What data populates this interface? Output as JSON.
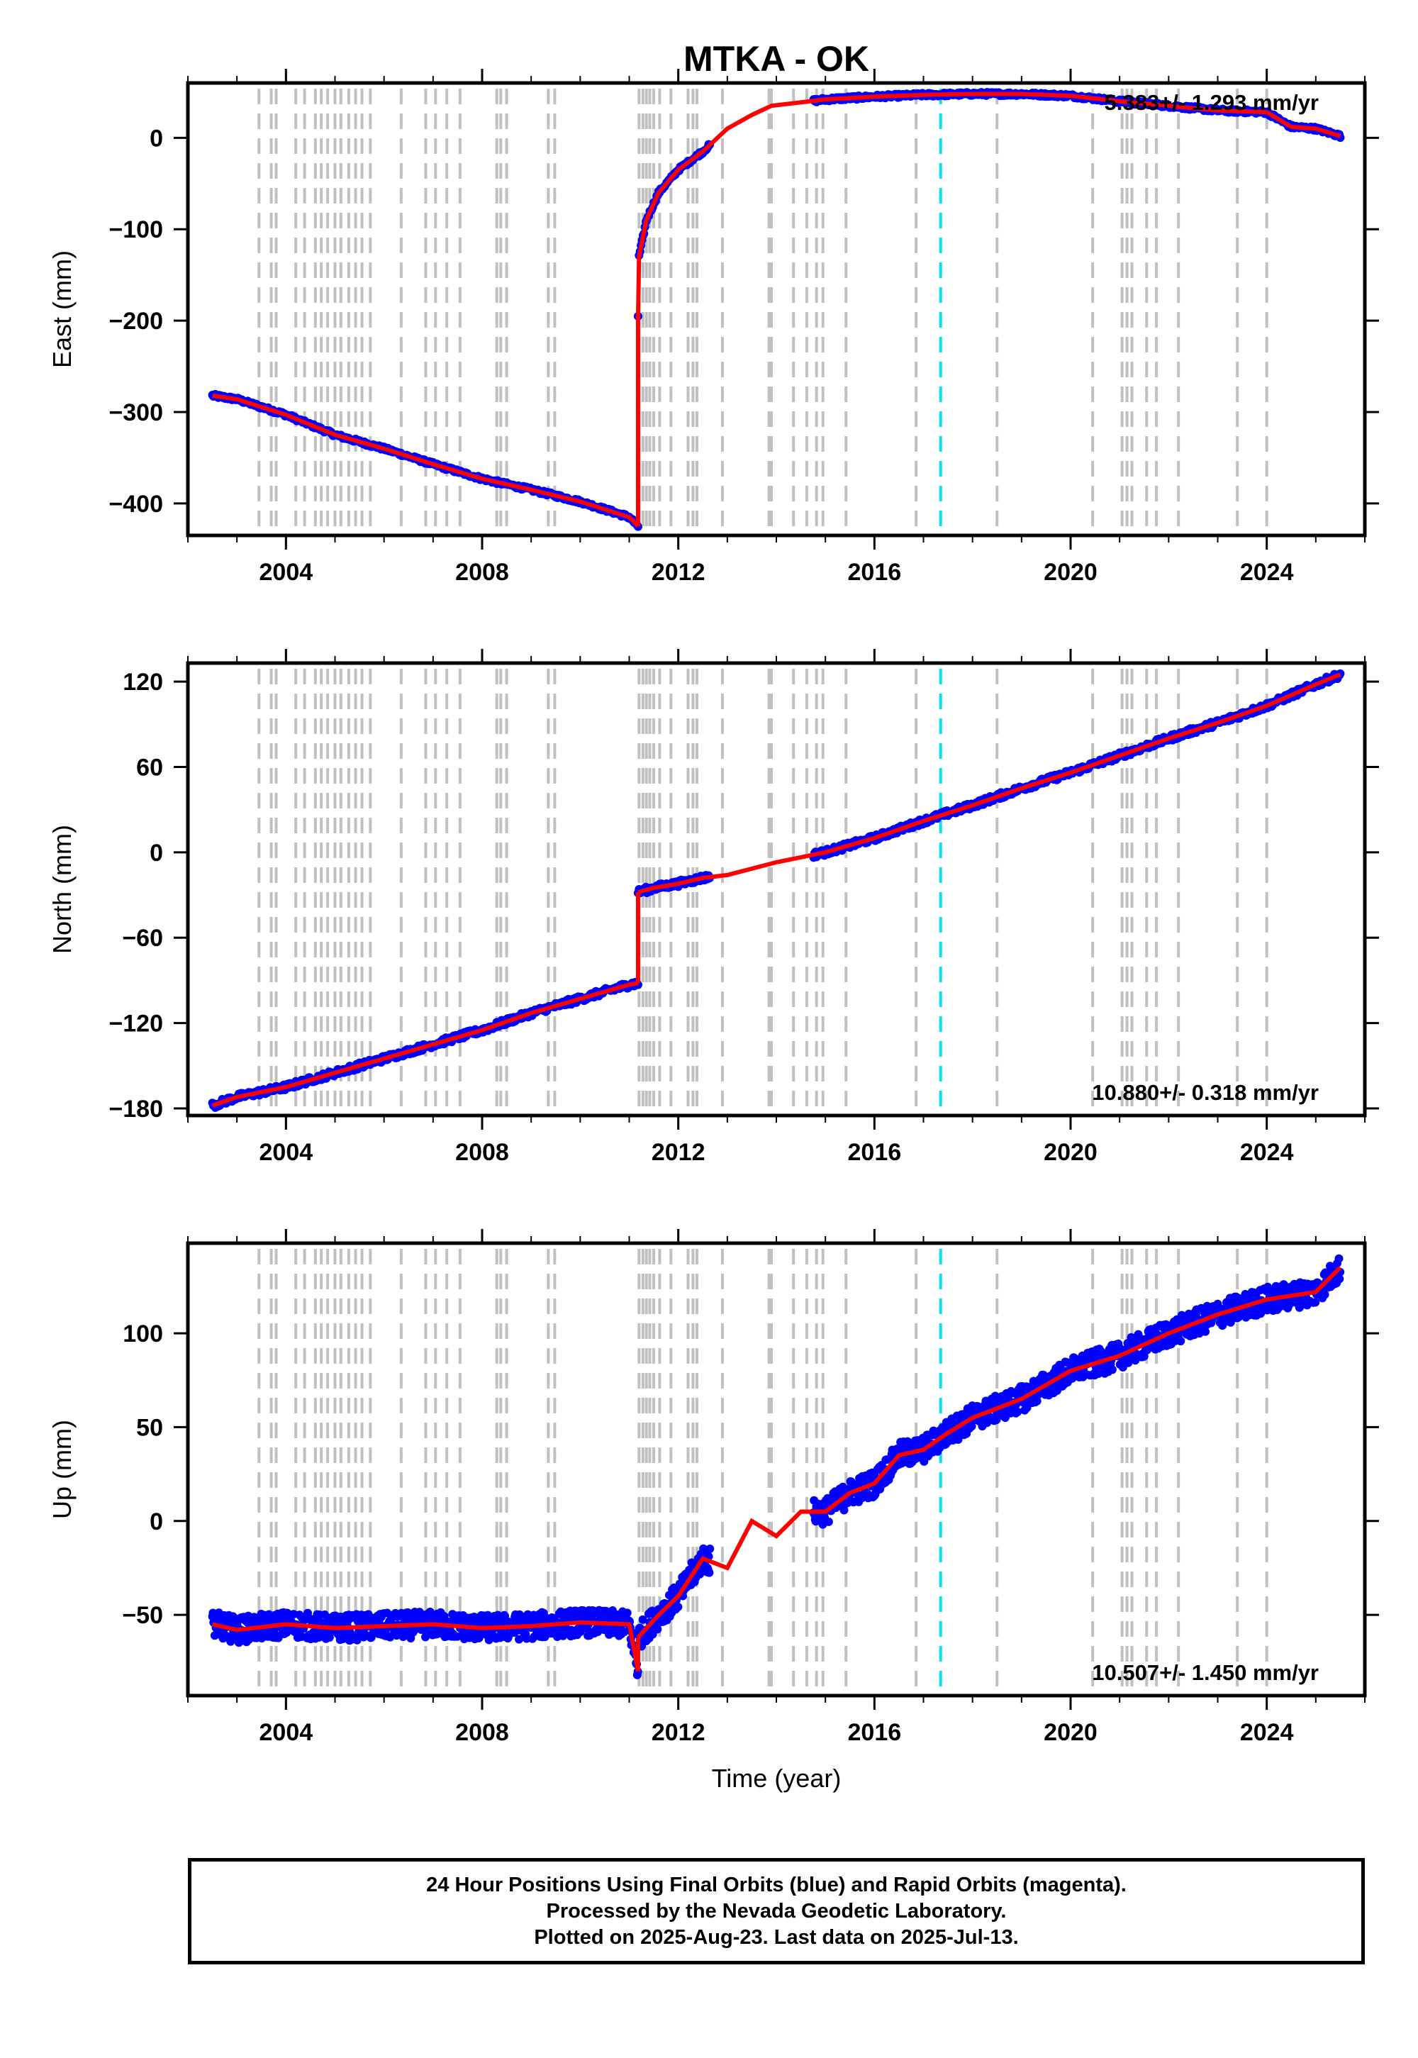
{
  "colors": {
    "data_points": "#0000ff",
    "model_line": "#ff0000",
    "event_lines": "#c0c0c0",
    "equipment_change_line": "#00e5ee"
  },
  "chart_data": [
    {
      "type": "scatter",
      "title": "MTKA - OK",
      "ylabel": "East (mm)",
      "xlim": [
        2002,
        2026
      ],
      "ylim": [
        -435,
        60
      ],
      "yticks": [
        -400,
        -300,
        -200,
        -100,
        0
      ],
      "ytick_labels": [
        "−400",
        "−300",
        "−200",
        "−100",
        "0"
      ],
      "xticks": [
        2004,
        2008,
        2012,
        2016,
        2020,
        2024
      ],
      "xtick_labels": [
        "2004",
        "2008",
        "2012",
        "2016",
        "2020",
        "2024"
      ],
      "rate_text": "5.383+/- 1.293 mm/yr",
      "series": [
        {
          "x": [
            2002.5,
            2003.0,
            2004.0,
            2005.0,
            2006.0,
            2007.0,
            2008.0,
            2009.0,
            2010.0,
            2011.0,
            2011.18
          ],
          "y": [
            -282,
            -286,
            -303,
            -325,
            -340,
            -357,
            -373,
            -385,
            -398,
            -415,
            -425
          ]
        },
        {
          "x": [
            2011.18,
            2011.2,
            2011.35,
            2011.6,
            2012.0,
            2012.5,
            2013.0,
            2013.5,
            2013.9,
            2015.0,
            2016.0,
            2017.0,
            2018.0,
            2019.0,
            2020.0,
            2021.0,
            2022.0,
            2023.0,
            2024.0,
            2024.5,
            2025.0,
            2025.5
          ],
          "y": [
            -195,
            -130,
            -90,
            -60,
            -35,
            -15,
            10,
            25,
            35,
            42,
            45,
            47,
            48,
            48,
            46,
            40,
            35,
            30,
            28,
            12,
            10,
            2
          ]
        }
      ]
    },
    {
      "type": "scatter",
      "ylabel": "North (mm)",
      "xlim": [
        2002,
        2026
      ],
      "ylim": [
        -185,
        133
      ],
      "yticks": [
        -180,
        -120,
        -60,
        0,
        60,
        120
      ],
      "ytick_labels": [
        "−180",
        "−120",
        "−60",
        "0",
        "60",
        "120"
      ],
      "xticks": [
        2004,
        2008,
        2012,
        2016,
        2020,
        2024
      ],
      "xtick_labels": [
        "2004",
        "2008",
        "2012",
        "2016",
        "2020",
        "2024"
      ],
      "rate_text": "10.880+/- 0.318 mm/yr",
      "series": [
        {
          "x": [
            2002.5,
            2003.0,
            2004.0,
            2005.0,
            2006.0,
            2007.0,
            2008.0,
            2009.0,
            2010.0,
            2011.0,
            2011.18
          ],
          "y": [
            -178,
            -172,
            -165,
            -155,
            -145,
            -135,
            -125,
            -113,
            -103,
            -93,
            -92
          ]
        },
        {
          "x": [
            2011.18,
            2011.5,
            2012.0,
            2012.5,
            2013.0,
            2014.0,
            2015.0,
            2016.0,
            2017.0,
            2018.0,
            2019.0,
            2020.0,
            2021.0,
            2022.0,
            2023.0,
            2024.0,
            2025.0,
            2025.5
          ],
          "y": [
            -28,
            -25,
            -22,
            -18,
            -16,
            -7,
            0,
            10,
            22,
            33,
            45,
            56,
            68,
            80,
            91,
            103,
            118,
            125
          ]
        }
      ]
    },
    {
      "type": "scatter",
      "ylabel": "Up (mm)",
      "xlabel": "Time (year)",
      "xlim": [
        2002,
        2026
      ],
      "ylim": [
        -93,
        148
      ],
      "yticks": [
        -50,
        0,
        50,
        100
      ],
      "ytick_labels": [
        "−50",
        "0",
        "50",
        "100"
      ],
      "xticks": [
        2004,
        2008,
        2012,
        2016,
        2020,
        2024
      ],
      "xtick_labels": [
        "2004",
        "2008",
        "2012",
        "2016",
        "2020",
        "2024"
      ],
      "rate_text": "10.507+/- 1.450 mm/yr",
      "series": [
        {
          "x": [
            2002.5,
            2003.0,
            2004.0,
            2005.0,
            2006.0,
            2007.0,
            2008.0,
            2009.0,
            2010.0,
            2011.0,
            2011.18
          ],
          "y": [
            -55,
            -58,
            -55,
            -57,
            -56,
            -55,
            -57,
            -56,
            -54,
            -55,
            -80
          ]
        },
        {
          "x": [
            2011.18,
            2011.6,
            2012.0,
            2012.5,
            2013.0,
            2013.5,
            2014.0,
            2014.5,
            2015.0,
            2015.5,
            2016.0,
            2016.5,
            2017.0,
            2017.5,
            2018.0,
            2019.0,
            2020.0,
            2021.0,
            2022.0,
            2023.0,
            2024.0,
            2025.0,
            2025.5
          ],
          "y": [
            -62,
            -50,
            -40,
            -20,
            -25,
            0,
            -8,
            5,
            5,
            15,
            20,
            35,
            38,
            47,
            55,
            65,
            80,
            88,
            100,
            110,
            118,
            122,
            135
          ]
        }
      ]
    }
  ],
  "event_lines_x": [
    2003.45,
    2003.7,
    2003.8,
    2004.2,
    2004.38,
    2004.6,
    2004.72,
    2004.85,
    2005.0,
    2005.12,
    2005.28,
    2005.42,
    2005.55,
    2005.72,
    2006.35,
    2006.85,
    2007.05,
    2007.28,
    2007.55,
    2008.3,
    2008.38,
    2008.5,
    2009.35,
    2009.48,
    2011.2,
    2011.28,
    2011.35,
    2011.42,
    2011.5,
    2011.62,
    2011.85,
    2012.2,
    2012.3,
    2012.38,
    2012.9,
    2013.85,
    2013.9,
    2014.35,
    2014.62,
    2014.82,
    2014.95,
    2015.42,
    2016.85,
    2018.5,
    2020.45,
    2021.05,
    2021.15,
    2021.25,
    2021.55,
    2021.75,
    2022.2,
    2023.4,
    2024.0
  ],
  "equipment_change_x": 2017.35,
  "footer": {
    "line1": "24 Hour Positions Using Final Orbits (blue) and Rapid Orbits (magenta).",
    "line2": "Processed by the Nevada Geodetic Laboratory.",
    "line3": "Plotted on 2025-Aug-23. Last data on 2025-Jul-13."
  }
}
